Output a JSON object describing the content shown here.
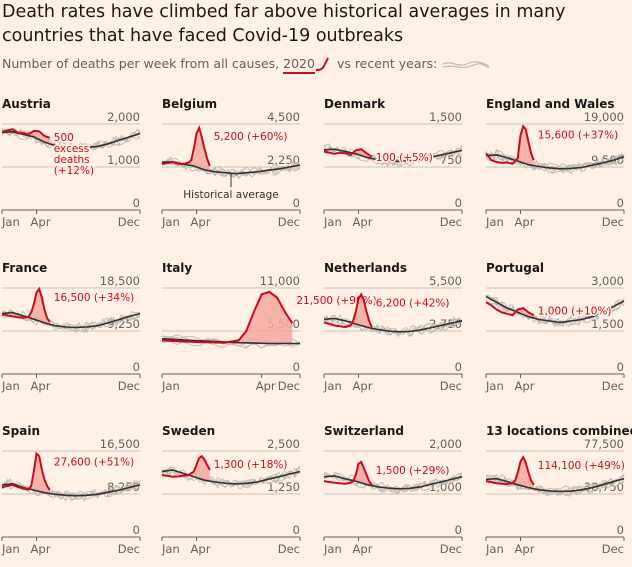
{
  "title": "Death rates have climbed far above historical averages in many countries that have faced Covid-19 outbreaks",
  "subtitle": {
    "prefix": "Number of deaths per week from all causes,",
    "year": "2020",
    "suffix": "vs recent years:"
  },
  "colors": {
    "background": "#fff1e5",
    "line_2020": "#cc0a1e",
    "excess_fill": "#f7a9a0",
    "historical_avg": "#33302e",
    "recent_years": "#bdb8b2",
    "gridline": "#ccc1b7"
  },
  "chart_data": [
    {
      "type": "line",
      "title": "Austria",
      "y_max": 2000,
      "y_ticks": [
        "2,000",
        "1,000",
        "0"
      ],
      "x_ticks": [
        "Jan",
        "Apr",
        "Dec"
      ],
      "avg_weeks": [
        0,
        4,
        8,
        12,
        16,
        20,
        24,
        28,
        32,
        36,
        40,
        44,
        48,
        52
      ],
      "avg_values": [
        1800,
        1820,
        1760,
        1700,
        1580,
        1500,
        1460,
        1440,
        1450,
        1480,
        1540,
        1620,
        1700,
        1780
      ],
      "weeks_2020": [
        0,
        2,
        4,
        6,
        8,
        10,
        12,
        14,
        16,
        18
      ],
      "values_2020": [
        1820,
        1850,
        1880,
        1800,
        1790,
        1760,
        1840,
        1830,
        1720,
        1680
      ],
      "annotation": [
        "500",
        "excess",
        "deaths",
        "(+12%)"
      ]
    },
    {
      "type": "line",
      "title": "Belgium",
      "y_max": 4500,
      "y_ticks": [
        "4,500",
        "2,250",
        "0"
      ],
      "x_ticks": [
        "Jan",
        "Apr",
        "Dec"
      ],
      "avg_weeks": [
        0,
        4,
        8,
        12,
        16,
        20,
        24,
        28,
        32,
        36,
        40,
        44,
        48,
        52
      ],
      "avg_values": [
        2500,
        2520,
        2400,
        2300,
        2100,
        2000,
        1950,
        1900,
        1950,
        2000,
        2080,
        2150,
        2250,
        2350
      ],
      "weeks_2020": [
        0,
        2,
        4,
        6,
        8,
        10,
        11,
        12,
        13,
        14,
        15,
        16,
        17,
        18
      ],
      "values_2020": [
        2400,
        2450,
        2500,
        2420,
        2400,
        2480,
        2600,
        3200,
        4000,
        4300,
        3800,
        3200,
        2700,
        2300
      ],
      "annotation": [
        "5,200 (+60%)"
      ],
      "avg_label": "Historical average"
    },
    {
      "type": "line",
      "title": "Denmark",
      "y_max": 1500,
      "y_ticks": [
        "1,500",
        "750",
        "0"
      ],
      "x_ticks": [
        "Jan",
        "Apr",
        "Dec"
      ],
      "avg_weeks": [
        0,
        4,
        8,
        12,
        16,
        20,
        24,
        28,
        32,
        36,
        40,
        44,
        48,
        52
      ],
      "avg_values": [
        1050,
        1060,
        1020,
        980,
        920,
        880,
        860,
        850,
        860,
        880,
        920,
        960,
        1000,
        1040
      ],
      "weeks_2020": [
        0,
        2,
        4,
        6,
        8,
        10,
        12,
        14,
        16,
        18
      ],
      "values_2020": [
        1020,
        1000,
        980,
        1000,
        990,
        960,
        1040,
        1060,
        990,
        930
      ],
      "annotation": [
        "100 (+5%)"
      ]
    },
    {
      "type": "line",
      "title": "England and Wales",
      "y_max": 19000,
      "y_ticks": [
        "19,000",
        "9,500",
        "0"
      ],
      "x_ticks": [
        "Jan",
        "Apr",
        "Dec"
      ],
      "avg_weeks": [
        0,
        4,
        8,
        12,
        16,
        20,
        24,
        28,
        32,
        36,
        40,
        44,
        48,
        52
      ],
      "avg_values": [
        12000,
        12200,
        11500,
        10800,
        10000,
        9600,
        9300,
        9100,
        9200,
        9400,
        9900,
        10400,
        11000,
        11800
      ],
      "weeks_2020": [
        0,
        2,
        4,
        6,
        8,
        10,
        11,
        12,
        13,
        14,
        15,
        16,
        17,
        18
      ],
      "values_2020": [
        12500,
        11000,
        10600,
        10400,
        10500,
        10200,
        10800,
        11500,
        16500,
        18500,
        17800,
        15000,
        12500,
        11000
      ],
      "annotation": [
        "15,600 (+37%)"
      ]
    },
    {
      "type": "line",
      "title": "France",
      "y_max": 18500,
      "y_ticks": [
        "18,500",
        "9,250",
        "0"
      ],
      "x_ticks": [
        "Jan",
        "Apr",
        "Dec"
      ],
      "avg_weeks": [
        0,
        4,
        8,
        12,
        16,
        20,
        24,
        28,
        32,
        36,
        40,
        44,
        48,
        52
      ],
      "avg_values": [
        13000,
        13200,
        12500,
        11800,
        11000,
        10400,
        10100,
        10000,
        10100,
        10400,
        11000,
        11700,
        12400,
        13000
      ],
      "weeks_2020": [
        0,
        2,
        4,
        6,
        8,
        10,
        11,
        12,
        13,
        14,
        15,
        16,
        17,
        18
      ],
      "values_2020": [
        12800,
        12600,
        12400,
        12200,
        12100,
        12300,
        13200,
        15000,
        17500,
        18300,
        16500,
        13800,
        12000,
        11200
      ],
      "annotation": [
        "16,500 (+34%)"
      ]
    },
    {
      "type": "line",
      "title": "Italy",
      "y_max": 11000,
      "y_ticks": [
        "11,000",
        "5,500",
        "0"
      ],
      "x_ticks": [
        "Jan",
        "Apr",
        "Dec"
      ],
      "avg_weeks": [
        0,
        2,
        4,
        6,
        8,
        10,
        12,
        14,
        16,
        18
      ],
      "avg_values": [
        4500,
        4400,
        4300,
        4200,
        4100,
        4000,
        3950,
        3900,
        3900,
        3900
      ],
      "weeks_2020": [
        0,
        2,
        4,
        6,
        8,
        10,
        11,
        12,
        13,
        14,
        15,
        16,
        17
      ],
      "values_2020": [
        4300,
        4200,
        4100,
        4050,
        4000,
        4300,
        5500,
        8000,
        10200,
        10500,
        9800,
        8000,
        6500
      ],
      "annotation": [
        "21,500 (+90%)"
      ]
    },
    {
      "type": "line",
      "title": "Netherlands",
      "y_max": 5500,
      "y_ticks": [
        "5,500",
        "2,750",
        "0"
      ],
      "x_ticks": [
        "Jan",
        "Apr",
        "Dec"
      ],
      "avg_weeks": [
        0,
        4,
        8,
        12,
        16,
        20,
        24,
        28,
        32,
        36,
        40,
        44,
        48,
        52
      ],
      "avg_values": [
        3500,
        3550,
        3400,
        3200,
        3000,
        2850,
        2750,
        2700,
        2720,
        2800,
        2950,
        3100,
        3250,
        3400
      ],
      "weeks_2020": [
        0,
        2,
        4,
        6,
        8,
        10,
        11,
        12,
        13,
        14,
        15,
        16,
        17,
        18
      ],
      "values_2020": [
        3300,
        3200,
        3100,
        3050,
        3000,
        3100,
        3400,
        4000,
        4800,
        5100,
        4700,
        4000,
        3400,
        3000
      ],
      "annotation": [
        "6,200 (+42%)"
      ]
    },
    {
      "type": "line",
      "title": "Portugal",
      "y_max": 3000,
      "y_ticks": [
        "3,000",
        "1,500",
        "0"
      ],
      "x_ticks": [
        "Jan",
        "Apr",
        "Dec"
      ],
      "avg_weeks": [
        0,
        4,
        8,
        12,
        16,
        20,
        24,
        28,
        32,
        36,
        40,
        44,
        48,
        52
      ],
      "avg_values": [
        2700,
        2500,
        2300,
        2150,
        2000,
        1900,
        1850,
        1800,
        1850,
        1900,
        2000,
        2150,
        2350,
        2550
      ],
      "weeks_2020": [
        0,
        2,
        4,
        6,
        8,
        10,
        12,
        14,
        16,
        18
      ],
      "values_2020": [
        2500,
        2400,
        2250,
        2150,
        2100,
        2050,
        2250,
        2300,
        2150,
        2050
      ],
      "annotation": [
        "1,000 (+10%)"
      ]
    },
    {
      "type": "line",
      "title": "Spain",
      "y_max": 16500,
      "y_ticks": [
        "16,500",
        "8,250",
        "0"
      ],
      "x_ticks": [
        "Jan",
        "Apr",
        "Dec"
      ],
      "avg_weeks": [
        0,
        4,
        8,
        12,
        16,
        20,
        24,
        28,
        32,
        36,
        40,
        44,
        48,
        52
      ],
      "avg_values": [
        10000,
        10200,
        9500,
        9000,
        8500,
        8200,
        8000,
        7900,
        8000,
        8200,
        8600,
        9000,
        9500,
        10000
      ],
      "weeks_2020": [
        0,
        2,
        4,
        6,
        8,
        10,
        11,
        12,
        13,
        14,
        15,
        16,
        17,
        18
      ],
      "values_2020": [
        9500,
        9800,
        10000,
        9600,
        9300,
        9100,
        9800,
        12500,
        16000,
        15500,
        13000,
        11000,
        9800,
        9000
      ],
      "annotation": [
        "27,600 (+51%)"
      ]
    },
    {
      "type": "line",
      "title": "Sweden",
      "y_max": 2500,
      "y_ticks": [
        "2,500",
        "1,250",
        "0"
      ],
      "x_ticks": [
        "Jan",
        "Apr",
        "Dec"
      ],
      "avg_weeks": [
        0,
        4,
        8,
        12,
        16,
        20,
        24,
        28,
        32,
        36,
        40,
        44,
        48,
        52
      ],
      "avg_values": [
        1900,
        1950,
        1850,
        1750,
        1650,
        1600,
        1560,
        1540,
        1560,
        1600,
        1680,
        1750,
        1830,
        1900
      ],
      "weeks_2020": [
        0,
        2,
        4,
        6,
        8,
        10,
        12,
        13,
        14,
        15,
        16,
        17,
        18
      ],
      "values_2020": [
        1800,
        1780,
        1750,
        1760,
        1780,
        1800,
        1900,
        2100,
        2300,
        2350,
        2250,
        2100,
        1950
      ],
      "annotation": [
        "1,300 (+18%)"
      ]
    },
    {
      "type": "line",
      "title": "Switzerland",
      "y_max": 2000,
      "y_ticks": [
        "2,000",
        "1,000",
        "0"
      ],
      "x_ticks": [
        "Jan",
        "Apr",
        "Dec"
      ],
      "avg_weeks": [
        0,
        4,
        8,
        12,
        16,
        20,
        24,
        28,
        32,
        36,
        40,
        44,
        48,
        52
      ],
      "avg_values": [
        1400,
        1420,
        1350,
        1300,
        1220,
        1170,
        1140,
        1120,
        1130,
        1160,
        1220,
        1280,
        1340,
        1400
      ],
      "weeks_2020": [
        0,
        2,
        4,
        6,
        8,
        10,
        11,
        12,
        13,
        14,
        15,
        16,
        17,
        18
      ],
      "values_2020": [
        1300,
        1280,
        1260,
        1250,
        1240,
        1260,
        1300,
        1450,
        1700,
        1750,
        1600,
        1450,
        1300,
        1200
      ],
      "annotation": [
        "1,500 (+29%)"
      ]
    },
    {
      "type": "line",
      "title": "13 locations combined*",
      "y_max": 77500,
      "y_ticks": [
        "77,500",
        "38,750",
        "0"
      ],
      "x_ticks": [
        "Jan",
        "Apr",
        "Dec"
      ],
      "avg_weeks": [
        0,
        4,
        8,
        12,
        16,
        20,
        24,
        28,
        32,
        36,
        40,
        44,
        48,
        52
      ],
      "avg_values": [
        52000,
        52500,
        50000,
        47000,
        44500,
        42500,
        41500,
        41000,
        41300,
        42500,
        44500,
        47000,
        50000,
        52500
      ],
      "weeks_2020": [
        0,
        2,
        4,
        6,
        8,
        10,
        11,
        12,
        13,
        14,
        15,
        16,
        17,
        18
      ],
      "values_2020": [
        50500,
        49500,
        48500,
        48000,
        47800,
        48500,
        51000,
        58000,
        68000,
        72000,
        67000,
        58000,
        51000,
        47000
      ],
      "annotation": [
        "114,100 (+49%)"
      ]
    }
  ]
}
